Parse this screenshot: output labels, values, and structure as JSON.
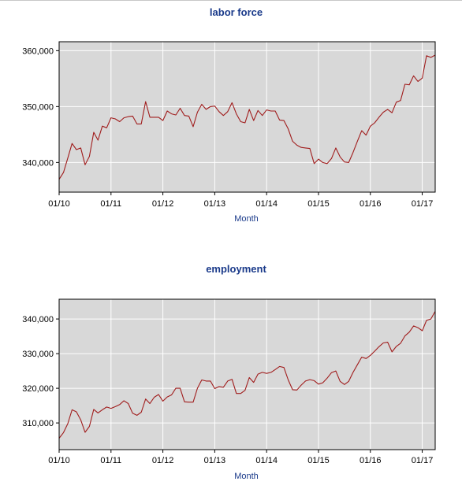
{
  "chart_data": [
    {
      "type": "line",
      "title": "labor force",
      "xlabel": "Month",
      "ylabel": "",
      "x_tick_labels": [
        "01/10",
        "01/11",
        "01/12",
        "01/13",
        "01/14",
        "01/15",
        "01/16",
        "01/17"
      ],
      "y_tick_labels": [
        "340,000",
        "350,000",
        "360,000"
      ],
      "ylim": [
        334700,
        361600
      ],
      "grid": true,
      "color": "#a01c1c",
      "background": "#d8d8d8",
      "series": [
        {
          "x_start": "2010-01",
          "frequency": "monthly",
          "values": [
            337000,
            338200,
            340800,
            343400,
            342300,
            342600,
            339600,
            341100,
            345400,
            344000,
            346500,
            346200,
            348000,
            347800,
            347300,
            348000,
            348200,
            348300,
            346900,
            346900,
            350900,
            348100,
            348100,
            348100,
            347500,
            349200,
            348700,
            348500,
            349700,
            348400,
            348300,
            346400,
            349000,
            350400,
            349500,
            350000,
            350100,
            349100,
            348400,
            349100,
            350700,
            348700,
            347300,
            347100,
            349500,
            347500,
            349300,
            348400,
            349400,
            349200,
            349200,
            347600,
            347500,
            346000,
            343800,
            343100,
            342700,
            342600,
            342500,
            339800,
            340600,
            340000,
            339800,
            340700,
            342600,
            341000,
            340100,
            340000,
            341800,
            343800,
            345700,
            344900,
            346500,
            347100,
            348100,
            349000,
            349500,
            348900,
            350800,
            351100,
            354000,
            353900,
            355500,
            354500,
            355100,
            359100,
            358800,
            359200
          ]
        }
      ]
    },
    {
      "type": "line",
      "title": "employment",
      "xlabel": "Month",
      "ylabel": "",
      "x_tick_labels": [
        "01/10",
        "01/11",
        "01/12",
        "01/13",
        "01/14",
        "01/15",
        "01/16",
        "01/17"
      ],
      "y_tick_labels": [
        "310,000",
        "320,000",
        "330,000",
        "340,000"
      ],
      "ylim": [
        302300,
        345700
      ],
      "grid": true,
      "color": "#a01c1c",
      "background": "#d8d8d8",
      "series": [
        {
          "x_start": "2010-01",
          "frequency": "monthly",
          "values": [
            305600,
            307200,
            309800,
            313800,
            313200,
            310900,
            307300,
            309000,
            313900,
            312900,
            313800,
            314600,
            314200,
            314700,
            315300,
            316400,
            315600,
            312800,
            312200,
            313100,
            316900,
            315600,
            317400,
            318200,
            316300,
            317500,
            318100,
            320000,
            320000,
            316100,
            316000,
            316000,
            320000,
            322400,
            322100,
            322100,
            319900,
            320500,
            320300,
            322100,
            322600,
            318500,
            318500,
            319400,
            323100,
            321700,
            324100,
            324600,
            324300,
            324600,
            325400,
            326300,
            326000,
            322400,
            319600,
            319500,
            320900,
            322100,
            322500,
            322200,
            321200,
            321600,
            322900,
            324500,
            325000,
            322000,
            321100,
            322000,
            324600,
            326800,
            329000,
            328600,
            329500,
            330700,
            332000,
            333100,
            333300,
            330500,
            332100,
            333000,
            335100,
            336200,
            338000,
            337500,
            336600,
            339600,
            340000,
            342200
          ]
        }
      ]
    }
  ]
}
